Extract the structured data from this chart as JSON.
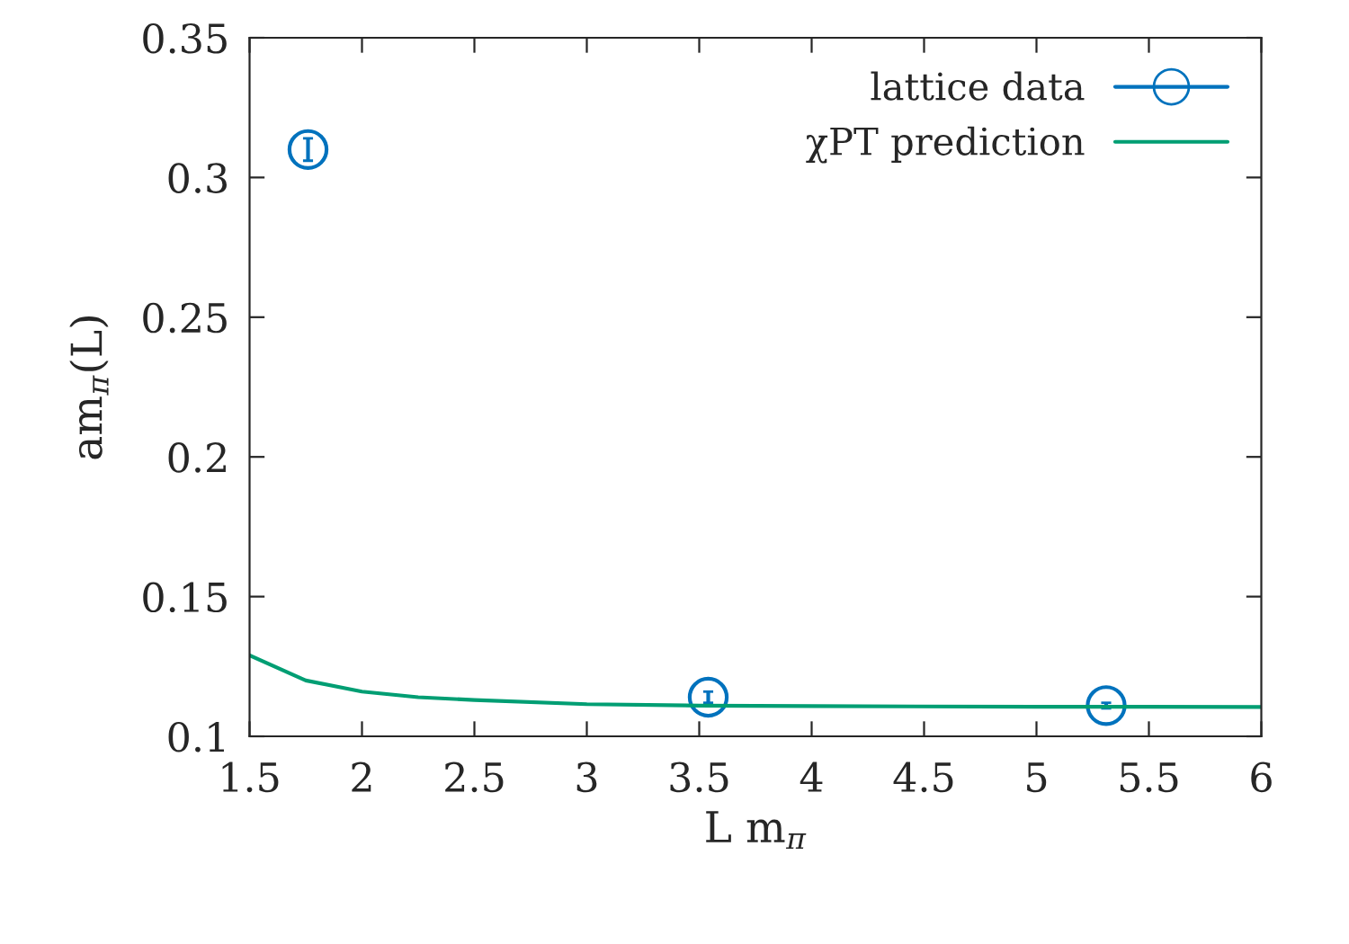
{
  "chart_data": {
    "type": "scatter",
    "xlabel": "L m$_{π}$",
    "ylabel": "am$_{π}$(L)",
    "xlim": [
      1.5,
      6
    ],
    "xticks": [
      1.5,
      2,
      2.5,
      3,
      3.5,
      4,
      4.5,
      5,
      5.5,
      6
    ],
    "ylim": [
      0.1,
      0.35
    ],
    "yticks": [
      0.1,
      0.15,
      0.2,
      0.25,
      0.3,
      0.35
    ],
    "grid": false,
    "legend": "top right",
    "marker": "circle",
    "series": [
      {
        "name": "lattice data",
        "color": "#0072bd",
        "x": [
          1.76,
          3.54,
          5.31
        ],
        "values": [
          0.31,
          0.114,
          0.111
        ],
        "errors": [
          0.004,
          0.002,
          0.001
        ]
      },
      {
        "name": "χPT prediction",
        "type": "line",
        "color": "#009e73",
        "marker": "none",
        "line_style": "solid",
        "x": [
          1.5,
          1.75,
          2,
          2.25,
          2.5,
          3,
          3.5,
          4,
          5,
          6
        ],
        "values": [
          0.129,
          0.12,
          0.116,
          0.114,
          0.113,
          0.1115,
          0.111,
          0.1108,
          0.1106,
          0.1105
        ]
      }
    ]
  }
}
